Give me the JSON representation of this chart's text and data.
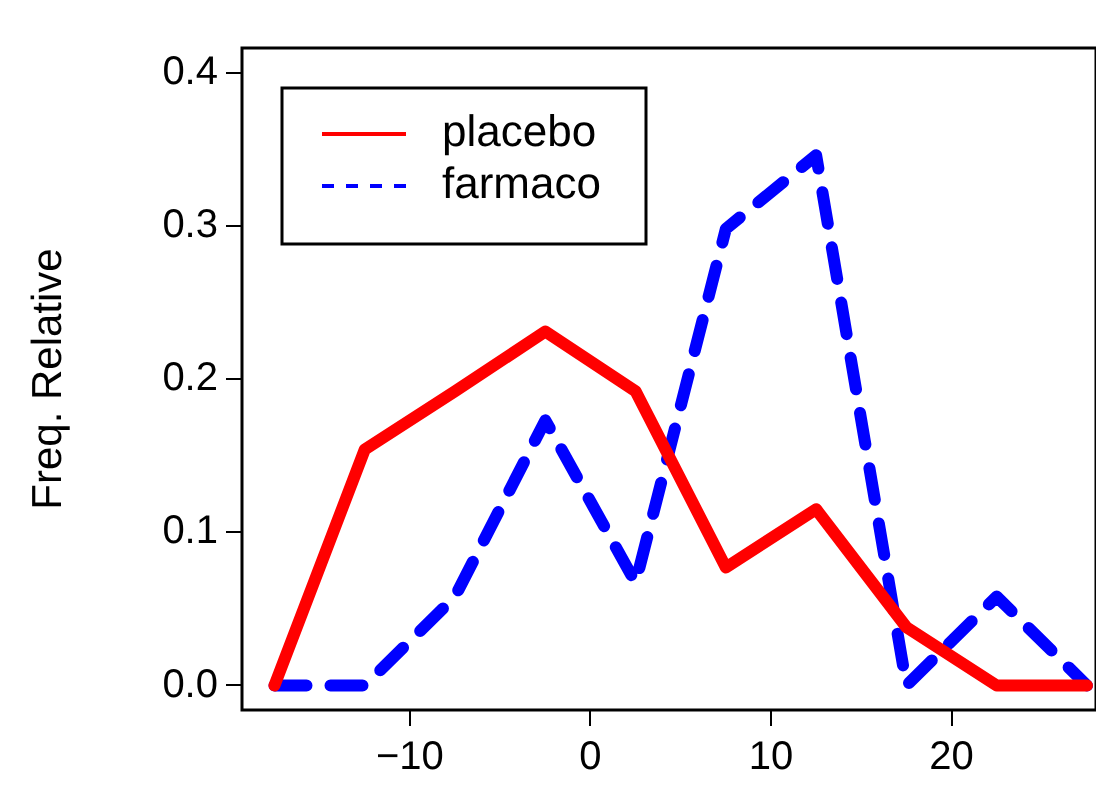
{
  "chart_data": {
    "type": "line",
    "ylabel": "Freq. Relative",
    "x": [
      -17.5,
      -12.5,
      -7.5,
      -2.5,
      2.5,
      7.5,
      12.5,
      17.5,
      22.5,
      27.5
    ],
    "series": [
      {
        "name": "placebo",
        "color": "#ff0000",
        "line_style": "solid",
        "values": [
          0,
          0.154,
          0.192,
          0.231,
          0.192,
          0.077,
          0.115,
          0.038,
          0,
          0
        ]
      },
      {
        "name": "farmaco",
        "color": "#0000ff",
        "line_style": "dashed",
        "values": [
          0,
          0,
          0.058,
          0.173,
          0.067,
          0.298,
          0.346,
          0,
          0.058,
          0
        ]
      }
    ],
    "xlim": [
      -19.3,
      28
    ],
    "xticks": [
      -10,
      0,
      10,
      20
    ],
    "ylim": [
      -0.016,
      0.416
    ],
    "yticks": [
      {
        "value": 0,
        "label": "0.0"
      },
      0.1,
      0.2,
      0.3,
      0.4
    ],
    "legend": "top left",
    "grid": false,
    "marker": "none"
  }
}
